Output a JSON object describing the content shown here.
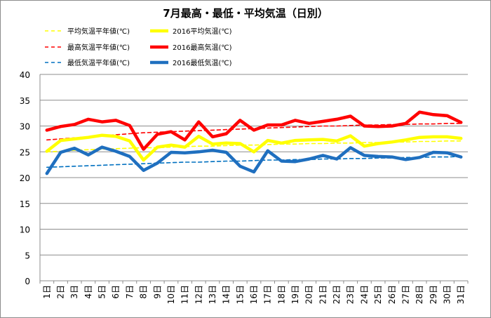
{
  "chart_data": {
    "type": "line",
    "title": "7月最高・最低・平均気温（日別）",
    "xlabel": "",
    "ylabel": "",
    "ylim": [
      0,
      40
    ],
    "yticks": [
      0,
      5,
      10,
      15,
      20,
      25,
      30,
      35,
      40
    ],
    "grid": true,
    "legend_position": "top",
    "categories": [
      "1日",
      "2日",
      "3日",
      "4日",
      "5日",
      "6日",
      "7日",
      "8日",
      "9日",
      "10日",
      "11日",
      "12日",
      "13日",
      "14日",
      "15日",
      "16日",
      "17日",
      "18日",
      "19日",
      "20日",
      "21日",
      "22日",
      "23日",
      "24日",
      "25日",
      "26日",
      "27日",
      "28日",
      "29日",
      "30日",
      "31日"
    ],
    "series": [
      {
        "name": "平均気温平年値(℃)",
        "color": "#ffff00",
        "style": "dashed",
        "values": [
          25.0,
          25.1,
          25.3,
          25.4,
          25.5,
          25.6,
          25.7,
          25.8,
          25.8,
          25.9,
          26.0,
          26.1,
          26.1,
          26.2,
          26.3,
          26.3,
          26.4,
          26.5,
          26.5,
          26.6,
          26.6,
          26.7,
          26.7,
          26.8,
          26.8,
          26.9,
          26.9,
          27.0,
          27.0,
          27.1,
          27.1
        ]
      },
      {
        "name": "2016平均気温(℃)",
        "color": "#ffff00",
        "style": "solid",
        "values": [
          25.1,
          27.2,
          27.5,
          27.8,
          28.2,
          28.0,
          27.1,
          23.4,
          25.9,
          26.3,
          25.9,
          28.0,
          26.5,
          26.7,
          26.6,
          25.0,
          27.2,
          26.7,
          27.2,
          27.3,
          27.4,
          27.1,
          28.1,
          26.1,
          26.6,
          26.9,
          27.3,
          27.8,
          27.9,
          27.9,
          27.6
        ]
      },
      {
        "name": "最高気温平年値(℃)",
        "color": "#ff0000",
        "style": "dashed",
        "values": [
          27.3,
          27.5,
          27.7,
          27.9,
          28.1,
          28.3,
          28.5,
          28.7,
          28.8,
          28.9,
          29.0,
          29.1,
          29.2,
          29.3,
          29.4,
          29.5,
          29.6,
          29.7,
          29.8,
          29.9,
          30.0,
          30.0,
          30.1,
          30.2,
          30.2,
          30.3,
          30.3,
          30.4,
          30.4,
          30.5,
          30.5
        ]
      },
      {
        "name": "2016最高気温(℃)",
        "color": "#ff0000",
        "style": "solid",
        "values": [
          29.2,
          29.9,
          30.3,
          31.3,
          30.8,
          31.1,
          30.1,
          25.5,
          28.4,
          28.9,
          27.3,
          30.8,
          27.9,
          28.5,
          31.1,
          29.2,
          30.2,
          30.2,
          31.1,
          30.5,
          30.9,
          31.3,
          31.9,
          30.0,
          29.9,
          30.0,
          30.5,
          32.7,
          32.2,
          32.0,
          30.7
        ]
      },
      {
        "name": "最低気温平年値(℃)",
        "color": "#0070c0",
        "style": "dashed",
        "values": [
          22.0,
          22.1,
          22.2,
          22.3,
          22.4,
          22.5,
          22.6,
          22.7,
          22.8,
          22.9,
          23.0,
          23.0,
          23.1,
          23.2,
          23.2,
          23.3,
          23.4,
          23.4,
          23.5,
          23.5,
          23.6,
          23.6,
          23.7,
          23.7,
          23.8,
          23.8,
          23.9,
          23.9,
          24.0,
          24.0,
          24.1
        ]
      },
      {
        "name": "2016最低気温(℃)",
        "color": "#1f6fbf",
        "style": "solid",
        "values": [
          20.8,
          24.9,
          25.7,
          24.4,
          25.9,
          25.1,
          24.1,
          21.4,
          22.8,
          24.9,
          24.8,
          25.0,
          25.3,
          24.9,
          22.2,
          21.1,
          25.2,
          23.2,
          23.1,
          23.6,
          24.3,
          23.6,
          25.8,
          24.3,
          24.1,
          24.0,
          23.5,
          23.9,
          24.9,
          24.8,
          24.0
        ]
      }
    ]
  }
}
